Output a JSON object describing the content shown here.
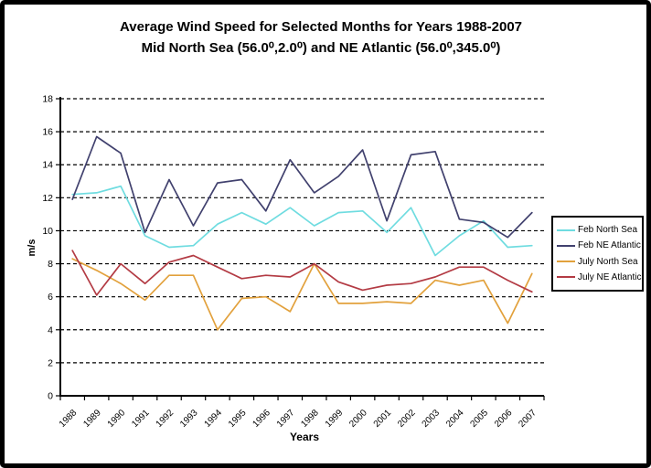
{
  "title": {
    "line1": "Average Wind Speed for Selected Months for Years 1988-2007",
    "line2": "Mid North Sea (56.0⁰,2.0⁰) and NE Atlantic (56.0⁰,345.0⁰)"
  },
  "colors": {
    "background": "#ffffff",
    "frame": "#000000",
    "axis": "#000000",
    "grid": "#000000",
    "legend_border": "#000000"
  },
  "chart_data": {
    "type": "line",
    "x_categories": [
      "1988",
      "1989",
      "1990",
      "1991",
      "1992",
      "1993",
      "1994",
      "1995",
      "1996",
      "1997",
      "1998",
      "1999",
      "2000",
      "2001",
      "2002",
      "2003",
      "2004",
      "2005",
      "2006",
      "2007"
    ],
    "series": [
      {
        "name": "Feb North Sea",
        "color": "#6FDCE0",
        "values": [
          12.2,
          12.3,
          12.7,
          9.7,
          9.0,
          9.1,
          10.4,
          11.1,
          10.4,
          11.4,
          10.3,
          11.1,
          11.2,
          9.9,
          11.4,
          8.5,
          9.7,
          10.6,
          9.0,
          9.1
        ]
      },
      {
        "name": "Feb NE Atlantic",
        "color": "#41416E",
        "values": [
          11.9,
          15.7,
          14.7,
          9.9,
          13.1,
          10.3,
          12.9,
          13.1,
          11.2,
          14.3,
          12.3,
          13.3,
          14.9,
          10.6,
          14.6,
          14.8,
          10.7,
          10.5,
          9.6,
          11.1
        ]
      },
      {
        "name": "July North Sea",
        "color": "#E2A13C",
        "values": [
          8.3,
          7.6,
          6.8,
          5.8,
          7.3,
          7.3,
          4.0,
          5.9,
          6.0,
          5.1,
          8.0,
          5.6,
          5.6,
          5.7,
          5.6,
          7.0,
          6.7,
          7.0,
          4.4,
          7.4
        ]
      },
      {
        "name": "July NE Atlantic",
        "color": "#B33B44",
        "values": [
          8.8,
          6.1,
          8.0,
          6.8,
          8.1,
          8.5,
          7.8,
          7.1,
          7.3,
          7.2,
          8.0,
          6.9,
          6.4,
          6.7,
          6.8,
          7.2,
          7.8,
          7.8,
          7.0,
          6.3
        ]
      }
    ],
    "xlabel": "Years",
    "ylabel": "m/s",
    "ylim": [
      0,
      18
    ],
    "y_tick_labels": [
      "0",
      "2",
      "4",
      "6",
      "8",
      "10",
      "12",
      "14",
      "16",
      "18"
    ],
    "grid": "horizontal-dashed",
    "legend_position": "right"
  }
}
